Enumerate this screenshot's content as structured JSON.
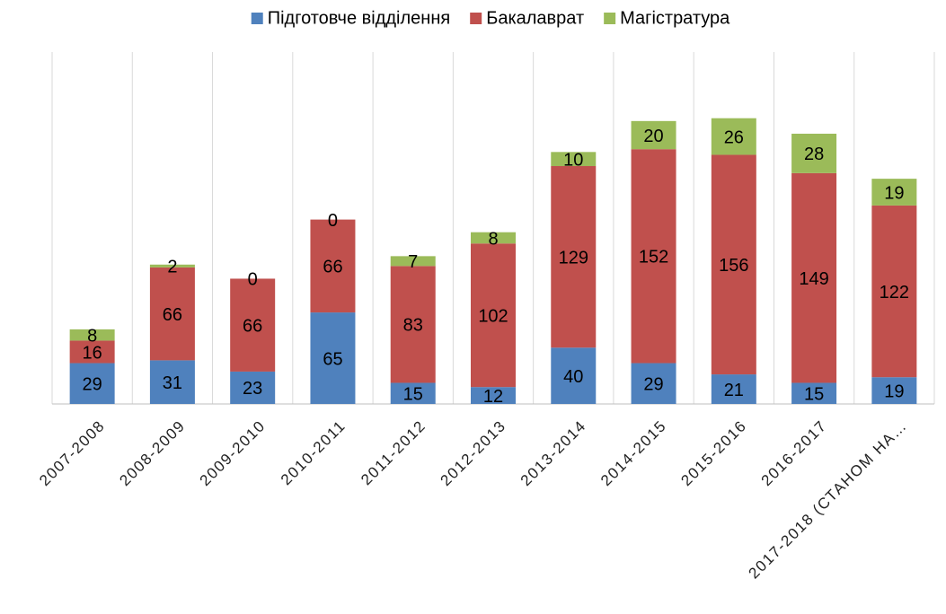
{
  "chart_data": {
    "type": "stacked_bar",
    "categories": [
      "2007-2008",
      "2008-2009",
      "2009-2010",
      "2010-2011",
      "2011-2012",
      "2012-2013",
      "2013-2014",
      "2014-2015",
      "2015-2016",
      "2016-2017",
      "2017-2018 (СТАНОМ НА…"
    ],
    "series": [
      {
        "name": "Підготовче відділення",
        "color": "#4f81bd",
        "values": [
          29,
          31,
          23,
          65,
          15,
          12,
          40,
          29,
          21,
          15,
          19
        ]
      },
      {
        "name": "Бакалаврат",
        "color": "#c0504d",
        "values": [
          16,
          66,
          66,
          66,
          83,
          102,
          129,
          152,
          156,
          149,
          122
        ]
      },
      {
        "name": "Магістратура",
        "color": "#9bbb59",
        "values": [
          8,
          2,
          0,
          0,
          7,
          8,
          10,
          20,
          26,
          28,
          19
        ]
      }
    ],
    "ylim": [
      0,
      250
    ],
    "legend": "top",
    "grid": "vertical"
  }
}
